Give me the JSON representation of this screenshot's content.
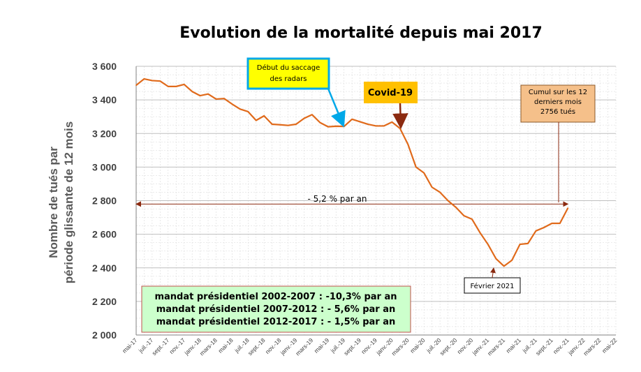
{
  "chart_data": {
    "type": "line",
    "title": "Evolution de la mortalité depuis mai 2017",
    "ylabel_line1": "Nombre de tués par",
    "ylabel_line2": "période  glissante de 12 mois",
    "ylim": [
      2000,
      3600
    ],
    "yticks": [
      "3 600",
      "3 400",
      "3 200",
      "3 000",
      "2 800",
      "2 600",
      "2 400",
      "2 200",
      "2 000"
    ],
    "ytick_values": [
      3600,
      3400,
      3200,
      3000,
      2800,
      2600,
      2400,
      2200,
      2000
    ],
    "grid": true,
    "xtick_labels": [
      "mai-17",
      "juil.-17",
      "sept.-17",
      "nov.-17",
      "janv.-18",
      "mars-18",
      "mai-18",
      "juil.-18",
      "sept.-18",
      "nov.-18",
      "janv.-19",
      "mars-19",
      "mai-19",
      "juil.-19",
      "sept.-19",
      "nov.-19",
      "janv.-20",
      "mars-20",
      "mai-20",
      "juil.-20",
      "sept.-20",
      "nov.-20",
      "janv.-21",
      "mars-21",
      "mai-21",
      "juil.-21",
      "sept.-21",
      "nov.-21",
      "janv.-22",
      "mars-22",
      "mai-22"
    ],
    "series": [
      {
        "color": "#e06a1b",
        "values": [
          3487,
          3525,
          3515,
          3512,
          3480,
          3480,
          3492,
          3450,
          3425,
          3435,
          3405,
          3408,
          3375,
          3345,
          3330,
          3278,
          3305,
          3255,
          3252,
          3248,
          3255,
          3290,
          3312,
          3265,
          3240,
          3243,
          3242,
          3285,
          3270,
          3255,
          3245,
          3245,
          3268,
          3230,
          3135,
          3000,
          2965,
          2880,
          2850,
          2800,
          2760,
          2710,
          2690,
          2610,
          2540,
          2455,
          2410,
          2445,
          2540,
          2545,
          2620,
          2640,
          2665,
          2665,
          2756
        ]
      }
    ],
    "trend_line_value": 2780,
    "trend_label": "- 5,2 % par an",
    "annotations": {
      "radars": "Début du saccage des radars",
      "covid": "Covid-19",
      "cumul_line1": "Cumul sur les 12",
      "cumul_line2": "derniers mois",
      "cumul_line3": "2756 tués",
      "fevrier": "Février 2021"
    },
    "mandats": [
      "mandat présidentiel 2002-2007 : -10,3% par an",
      "mandat présidentiel 2007-2012 : - 5,6% par an",
      "mandat présidentiel 2012-2017 : - 1,5% par an"
    ],
    "colors": {
      "line": "#e06a1b",
      "trend": "#8b2a10",
      "radar_box_border": "#00a8e8",
      "radar_box_fill": "#ffff00",
      "covid_box": "#ffc000",
      "cumul_box": "#f5c08a",
      "mandat_box": "#ccffcc",
      "mandat_border": "#c0504d"
    }
  }
}
